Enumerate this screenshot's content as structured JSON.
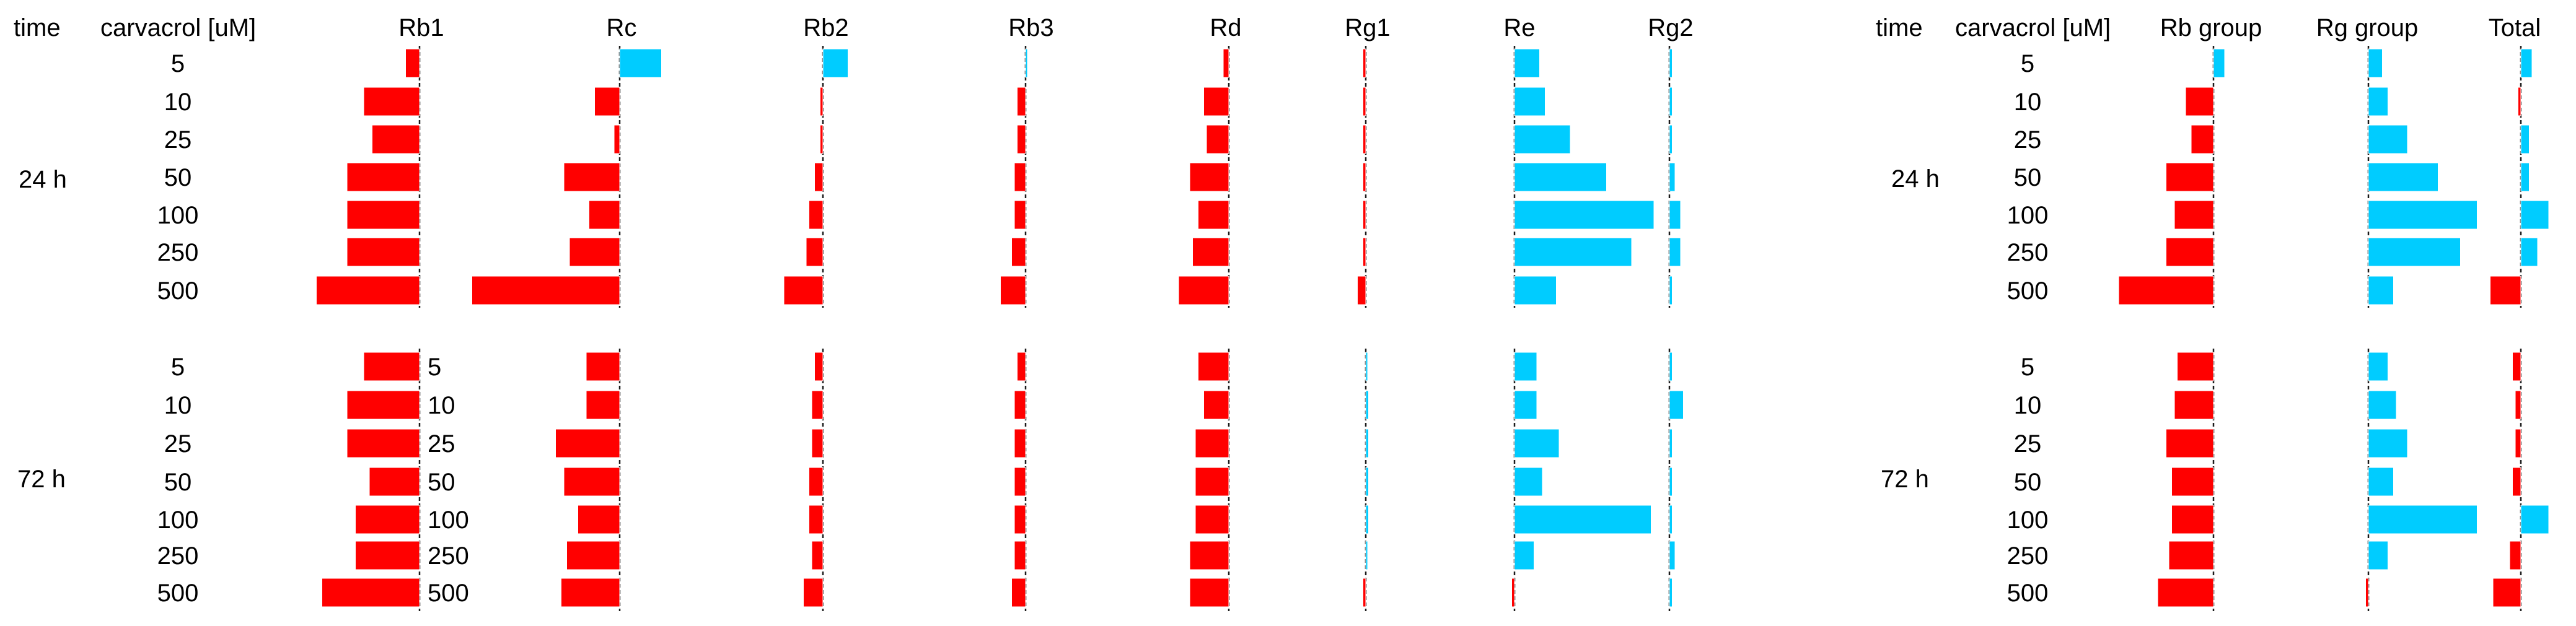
{
  "colors": {
    "negative": "#ff0000",
    "positive": "#00ccff"
  },
  "chart_data": {
    "type": "bar",
    "orientation": "horizontal",
    "header": {
      "time": "time",
      "dose": "carvacrol [uM]"
    },
    "groups": [
      "24 h",
      "72 h"
    ],
    "doses": [
      "5",
      "10",
      "25",
      "50",
      "100",
      "250",
      "500"
    ],
    "panels": [
      {
        "name": "Rb1",
        "label": "Rb1",
        "values": {
          "24 h": [
            -0.5,
            -2.0,
            -1.7,
            -2.6,
            -2.6,
            -2.6,
            -3.7
          ],
          "72 h": [
            -2.0,
            -2.6,
            -2.6,
            -1.8,
            -2.3,
            -2.3,
            -3.5
          ]
        }
      },
      {
        "name": "Rc",
        "label": "Rc",
        "values": {
          "24 h": [
            1.5,
            -0.9,
            -0.2,
            -2.0,
            -1.1,
            -1.8,
            -5.3
          ],
          "72 h": [
            -1.2,
            -1.2,
            -2.3,
            -2.0,
            -1.5,
            -1.9,
            -2.1
          ]
        }
      },
      {
        "name": "Rb2",
        "label": "Rb2",
        "values": {
          "24 h": [
            0.9,
            -0.1,
            -0.1,
            -0.3,
            -0.5,
            -0.6,
            -1.4
          ],
          "72 h": [
            -0.3,
            -0.4,
            -0.4,
            -0.5,
            -0.5,
            -0.4,
            -0.7
          ]
        }
      },
      {
        "name": "Rb3",
        "label": "Rb3",
        "values": {
          "24 h": [
            0.0,
            -0.3,
            -0.3,
            -0.4,
            -0.4,
            -0.5,
            -0.9
          ],
          "72 h": [
            -0.3,
            -0.4,
            -0.4,
            -0.4,
            -0.4,
            -0.4,
            -0.5
          ]
        }
      },
      {
        "name": "Rd",
        "label": "Rd",
        "values": {
          "24 h": [
            -0.2,
            -0.9,
            -0.8,
            -1.4,
            -1.1,
            -1.3,
            -1.8
          ],
          "72 h": [
            -1.1,
            -0.9,
            -1.2,
            -1.2,
            -1.2,
            -1.4,
            -1.4
          ]
        }
      },
      {
        "name": "Rg1",
        "label": "Rg1",
        "values": {
          "24 h": [
            -0.1,
            -0.1,
            -0.1,
            -0.1,
            -0.1,
            -0.1,
            -0.3
          ],
          "72 h": [
            0.0,
            0.1,
            0.1,
            0.1,
            0.1,
            0.0,
            -0.1
          ]
        }
      },
      {
        "name": "Re",
        "label": "Re",
        "values": {
          "24 h": [
            0.9,
            1.1,
            2.0,
            3.3,
            5.0,
            4.2,
            1.5
          ],
          "72 h": [
            0.8,
            0.8,
            1.6,
            1.0,
            4.9,
            0.7,
            -0.1
          ]
        }
      },
      {
        "name": "Rg2",
        "label": "Rg2",
        "values": {
          "24 h": [
            0.1,
            0.1,
            0.1,
            0.2,
            0.4,
            0.4,
            0.1
          ],
          "72 h": [
            0.1,
            0.5,
            0.1,
            0.1,
            0.1,
            0.2,
            0.1
          ]
        }
      },
      {
        "name": "Rb group",
        "label": "Rb group",
        "values": {
          "24 h": [
            0.4,
            -1.0,
            -0.8,
            -1.7,
            -1.4,
            -1.7,
            -3.4
          ],
          "72 h": [
            -1.3,
            -1.4,
            -1.7,
            -1.5,
            -1.5,
            -1.6,
            -2.0
          ]
        }
      },
      {
        "name": "Rg group",
        "label": "Rg group",
        "values": {
          "24 h": [
            0.5,
            0.7,
            1.4,
            2.5,
            3.9,
            3.3,
            0.9
          ],
          "72 h": [
            0.7,
            1.0,
            1.4,
            0.9,
            3.9,
            0.7,
            -0.1
          ]
        }
      },
      {
        "name": "Total",
        "label": "Total",
        "values": {
          "24 h": [
            0.4,
            -0.1,
            0.3,
            0.3,
            1.0,
            0.6,
            -1.1
          ],
          "72 h": [
            -0.3,
            -0.2,
            -0.2,
            -0.3,
            1.0,
            -0.4,
            -1.0
          ]
        }
      }
    ]
  }
}
